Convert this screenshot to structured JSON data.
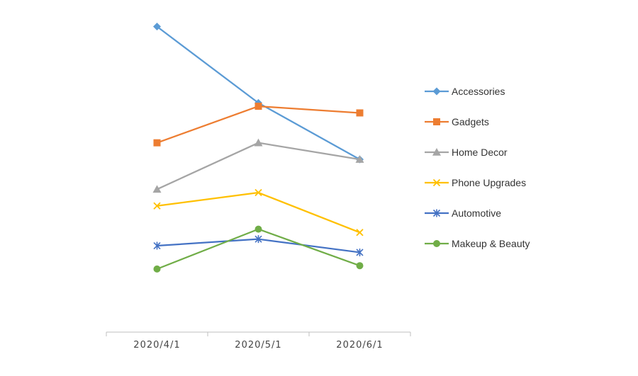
{
  "chart_data": {
    "type": "line",
    "categories": [
      "2020/4/1",
      "2020/5/1",
      "2020/6/1"
    ],
    "ylim": [
      0,
      100
    ],
    "grid": false,
    "legend_position": "right",
    "series": [
      {
        "name": "Accessories",
        "values": [
          92,
          69,
          52
        ],
        "color": "#5b9bd5",
        "marker": "diamond"
      },
      {
        "name": "Gadgets",
        "values": [
          57,
          68,
          66
        ],
        "color": "#ed7d31",
        "marker": "square"
      },
      {
        "name": "Home Decor",
        "values": [
          43,
          57,
          52
        ],
        "color": "#a5a5a5",
        "marker": "triangle"
      },
      {
        "name": "Phone Upgrades",
        "values": [
          38,
          42,
          30
        ],
        "color": "#ffc000",
        "marker": "x"
      },
      {
        "name": "Automotive",
        "values": [
          26,
          28,
          24
        ],
        "color": "#4472c4",
        "marker": "star"
      },
      {
        "name": "Makeup & Beauty",
        "values": [
          19,
          31,
          20
        ],
        "color": "#70ad47",
        "marker": "circle"
      }
    ]
  }
}
